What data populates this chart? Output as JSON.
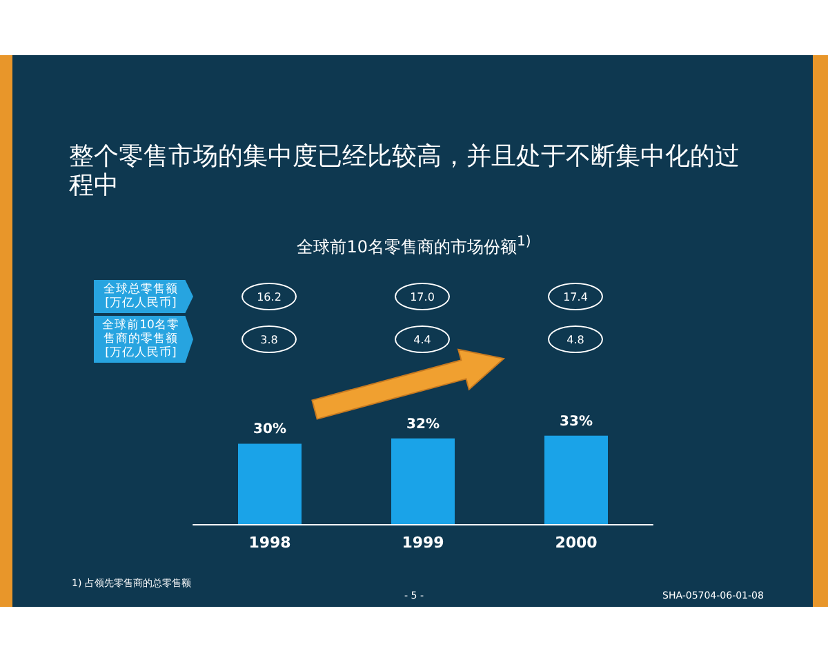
{
  "chart_data": {
    "type": "bar",
    "title": "整个零售市场的集中度已经比较高，并且处于不断集中化的过程中",
    "subtitle": "全球前10名零售商的市场份额$^{1)}$",
    "categories": [
      "1998",
      "1999",
      "2000"
    ],
    "values": [
      30,
      32,
      33
    ],
    "value_labels": [
      "30%",
      "32%",
      "33%"
    ],
    "color": "#1aa3e8",
    "annotations": [
      "全球总零售额[万亿人民币]",
      "16.2",
      "17.0",
      "17.4",
      "全球前10名零售商的零售额[万亿人民币]",
      "3.8",
      "4.4",
      "4.8",
      "1) 占领先零售商的总零售额",
      "- 5 -",
      "SHA-05704-06-01-08"
    ]
  }
}
